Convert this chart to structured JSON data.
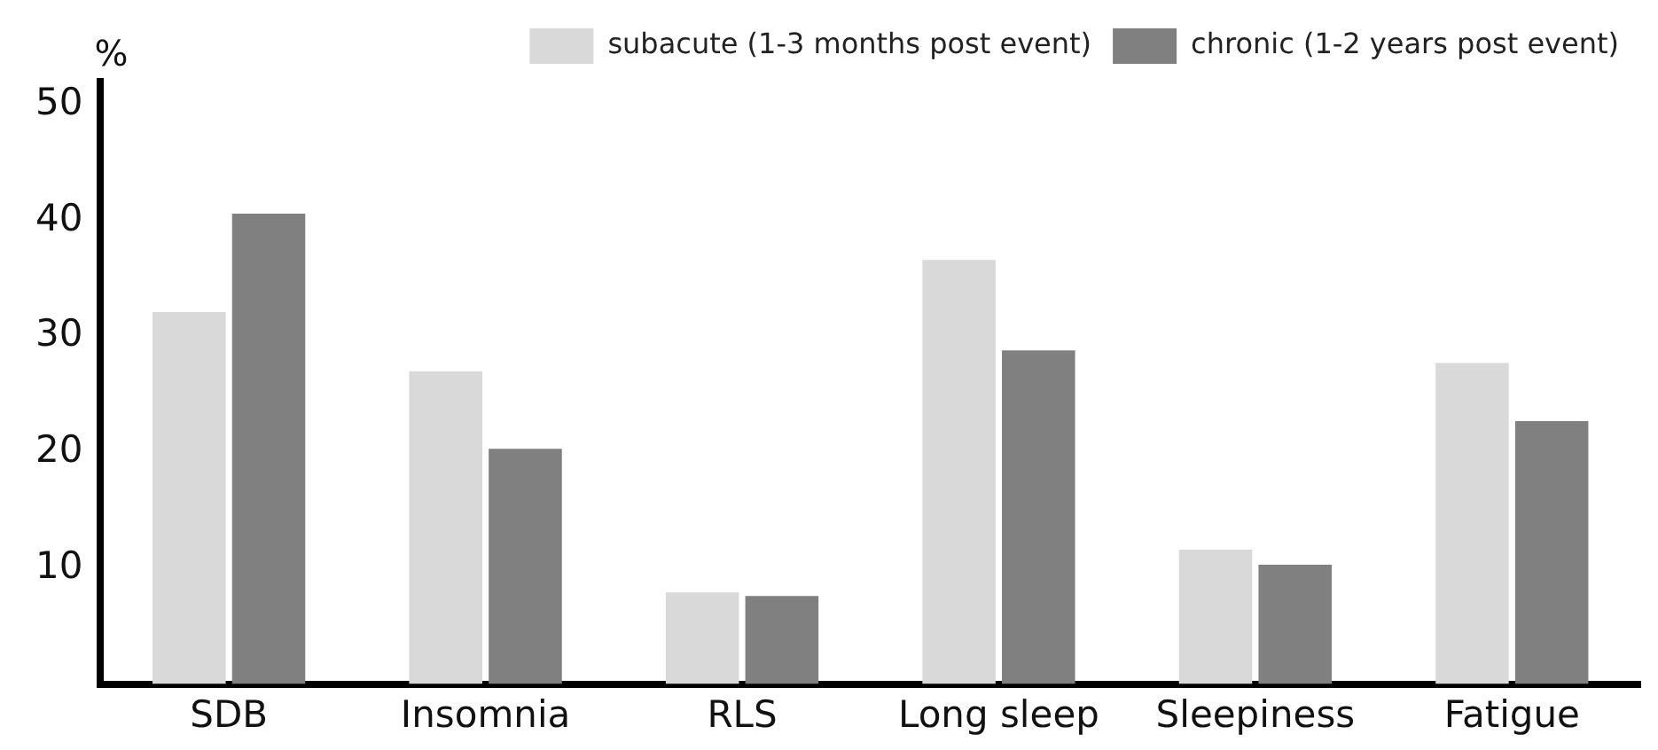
{
  "chart_data": {
    "type": "bar",
    "ylabel": "%",
    "categories": [
      "SDB",
      "Insomnia",
      "RLS",
      "Long sleep",
      "Sleepiness",
      "Fatigue"
    ],
    "series": [
      {
        "name": "subacute (1-3 months post event)",
        "color": "#d9d9d9",
        "values": [
          32.1,
          27.0,
          7.9,
          36.6,
          11.6,
          27.7
        ]
      },
      {
        "name": "chronic (1-2 years post event)",
        "color": "#808080",
        "values": [
          40.6,
          20.3,
          7.6,
          28.8,
          10.3,
          22.7
        ]
      }
    ],
    "ylim": [
      0,
      52
    ],
    "yticks": [
      10,
      20,
      30,
      40,
      50
    ],
    "grid": false,
    "legend": "top right"
  }
}
